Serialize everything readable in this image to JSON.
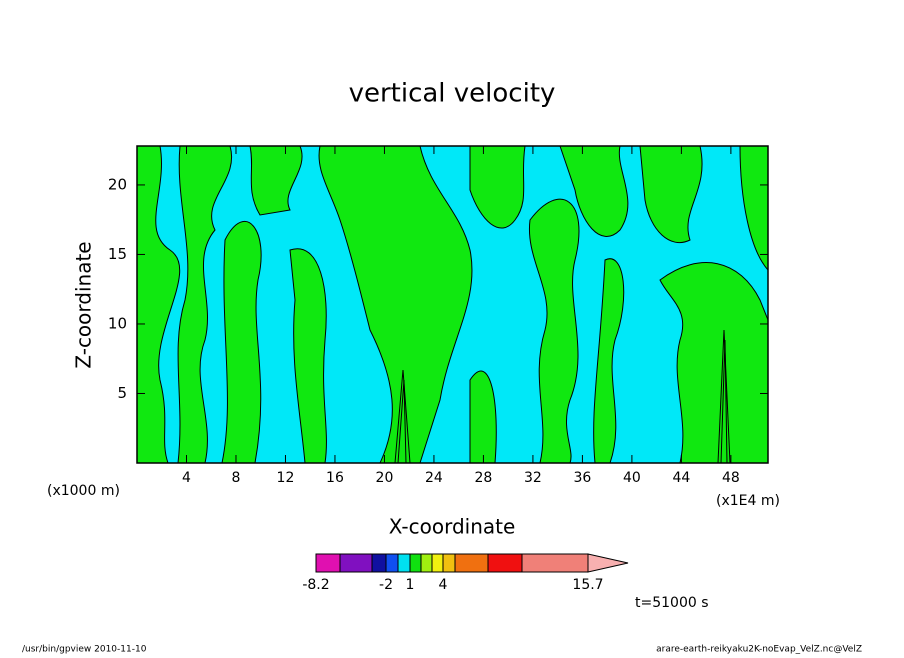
{
  "chart_data": {
    "type": "contour",
    "title": "vertical velocity",
    "x_label": "X-coordinate",
    "y_label": "Z-coordinate",
    "x_unit": "(x1E4 m)",
    "y_unit": "(x1000 m)",
    "xlim": [
      0,
      51
    ],
    "ylim": [
      0,
      22.8
    ],
    "xticks": [
      4,
      8,
      12,
      16,
      20,
      24,
      28,
      32,
      36,
      40,
      44,
      48
    ],
    "yticks": [
      5,
      10,
      15,
      20
    ],
    "colorbar": {
      "colors": [
        "#e010b0",
        "#8010c0",
        "#1010a0",
        "#1050f0",
        "#00e0f0",
        "#10e010",
        "#a0f010",
        "#f0f010",
        "#f0c010",
        "#f07010",
        "#f01010",
        "#f08078",
        "#f8b0b0"
      ],
      "ticks": [
        -8.2,
        -2,
        1,
        4,
        15.7
      ]
    },
    "time_label": "t=51000 s",
    "footer_left": "/usr/bin/gpview   2010-11-10",
    "footer_right": "arare-earth-reikyaku2K-noEvap_VelZ.nc@VelZ"
  }
}
